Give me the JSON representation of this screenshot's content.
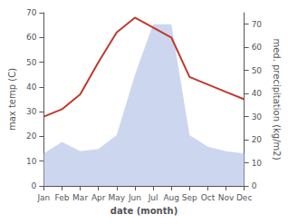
{
  "chart_data": {
    "type": "line",
    "xlabel": "date (month)",
    "ylabel": "max temp (C)",
    "y2label": "med. precipitation (kg/m2)",
    "categories": [
      "Jan",
      "Feb",
      "Mar",
      "Apr",
      "May",
      "Jun",
      "Jul",
      "Aug",
      "Sep",
      "Oct",
      "Nov",
      "Dec"
    ],
    "series": [
      {
        "type": "area",
        "axis": "y2",
        "color": "#b8c4e8",
        "values": [
          14,
          19,
          15,
          16,
          22,
          48,
          70,
          70,
          22,
          17,
          15,
          14
        ]
      },
      {
        "type": "line",
        "color": "#c0392b",
        "values": [
          28,
          31,
          37,
          50,
          62,
          68,
          64,
          60,
          44,
          41,
          38,
          35
        ]
      }
    ],
    "ylim": [
      0,
      70
    ],
    "yticks": [
      0,
      10,
      20,
      30,
      40,
      50,
      60,
      70
    ],
    "y2lim": [
      0,
      75
    ],
    "y2ticks": [
      0,
      10,
      20,
      30,
      40,
      50,
      60,
      70
    ],
    "grid": false
  }
}
